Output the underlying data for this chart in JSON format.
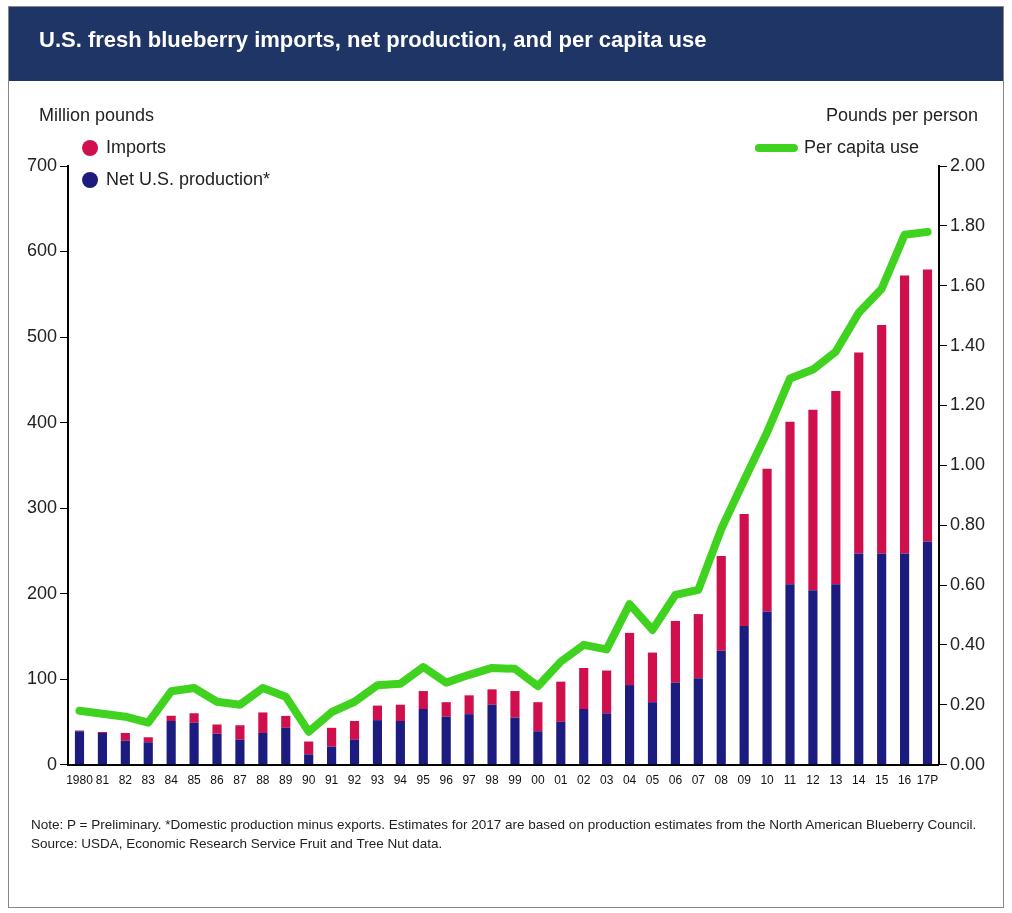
{
  "chart_data": {
    "type": "bar",
    "title": "U.S. fresh blueberry imports, net production, and per capita use",
    "ylabel": "Million pounds",
    "y2label": "Pounds per person",
    "categories": [
      "1980",
      "81",
      "82",
      "83",
      "84",
      "85",
      "86",
      "87",
      "88",
      "89",
      "90",
      "91",
      "92",
      "93",
      "94",
      "95",
      "96",
      "97",
      "98",
      "99",
      "00",
      "01",
      "02",
      "03",
      "04",
      "05",
      "06",
      "07",
      "08",
      "09",
      "10",
      "11",
      "12",
      "13",
      "14",
      "15",
      "16",
      "17P"
    ],
    "stacked": true,
    "series": [
      {
        "name": "Net U.S. production*",
        "color": "#1c1c80",
        "values": [
          39,
          37,
          28,
          26,
          51,
          49,
          36,
          29,
          37,
          43,
          12,
          21,
          29,
          52,
          51,
          65,
          56,
          59,
          70,
          55,
          39,
          50,
          65,
          60,
          93,
          73,
          96,
          101,
          133,
          162,
          179,
          211,
          204,
          211,
          247,
          247,
          247,
          261
        ]
      },
      {
        "name": "Imports",
        "color": "#d0104c",
        "values": [
          1,
          1,
          9,
          6,
          6,
          11,
          11,
          17,
          24,
          14,
          15,
          22,
          22,
          17,
          19,
          21,
          17,
          22,
          18,
          31,
          34,
          47,
          48,
          50,
          61,
          58,
          72,
          75,
          111,
          131,
          167,
          190,
          211,
          226,
          235,
          267,
          325,
          318
        ]
      },
      {
        "name": "Per capita use",
        "type": "line",
        "axis": "y2",
        "color": "#3fd21f",
        "values": [
          0.18,
          0.17,
          0.16,
          0.14,
          0.245,
          0.256,
          0.21,
          0.2,
          0.256,
          0.227,
          0.11,
          0.175,
          0.21,
          0.265,
          0.27,
          0.326,
          0.274,
          0.3,
          0.323,
          0.32,
          0.262,
          0.344,
          0.4,
          0.385,
          0.536,
          0.45,
          0.567,
          0.584,
          0.787,
          0.95,
          1.11,
          1.29,
          1.32,
          1.38,
          1.51,
          1.59,
          1.77,
          1.78
        ]
      }
    ],
    "ylim": [
      0,
      700
    ],
    "yticks": [
      0,
      100,
      200,
      300,
      400,
      500,
      600,
      700
    ],
    "y2lim": [
      0,
      2
    ],
    "y2ticks": [
      {
        "value": 0,
        "label": "0.00"
      },
      {
        "value": 0.2,
        "label": "0.20"
      },
      {
        "value": 0.4,
        "label": "0.40"
      },
      {
        "value": 0.6,
        "label": "0.60"
      },
      {
        "value": 0.8,
        "label": "0.80"
      },
      {
        "value": 1,
        "label": "1.00"
      },
      {
        "value": 1.2,
        "label": "1.20"
      },
      {
        "value": 1.4,
        "label": "1.40"
      },
      {
        "value": 1.6,
        "label": "1.60"
      },
      {
        "value": 1.8,
        "label": "1.80"
      },
      {
        "value": 2,
        "label": "2.00"
      }
    ],
    "grid": false,
    "legend": "top",
    "marker": "none",
    "line_style": "solid",
    "annotations": [
      "Note: P = Preliminary. *Domestic production minus exports. Estimates for 2017 are based on production estimates from the North American Blueberry Council.",
      "Source: USDA, Economic Research Service Fruit and Tree Nut data."
    ]
  }
}
